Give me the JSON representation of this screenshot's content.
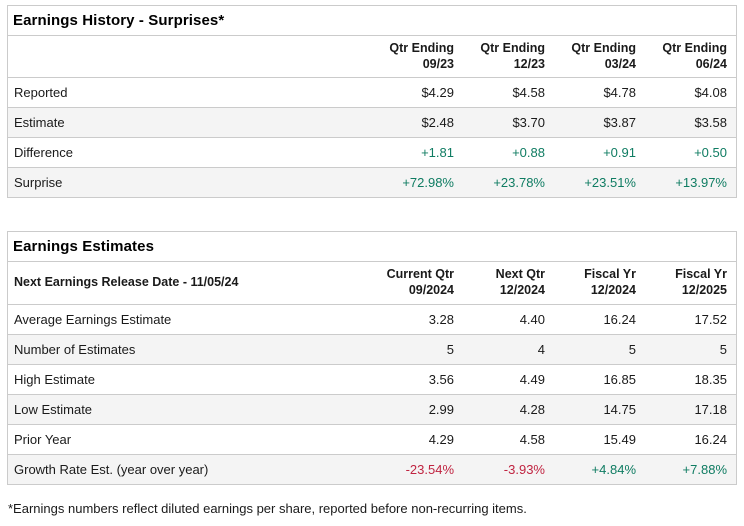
{
  "colors": {
    "green": "#0f7c62",
    "red": "#c02441",
    "default": "#1a1a1a",
    "border": "#cbcbcb",
    "alt_row_bg": "#f4f4f4"
  },
  "earnings_history": {
    "title": "Earnings History - Surprises*",
    "corner_label": "",
    "columns": [
      {
        "line1": "Qtr Ending",
        "line2": "09/23"
      },
      {
        "line1": "Qtr Ending",
        "line2": "12/23"
      },
      {
        "line1": "Qtr Ending",
        "line2": "03/24"
      },
      {
        "line1": "Qtr Ending",
        "line2": "06/24"
      }
    ],
    "rows": [
      {
        "label": "Reported",
        "values": [
          "$4.29",
          "$4.58",
          "$4.78",
          "$4.08"
        ],
        "value_colors": [
          "default",
          "default",
          "default",
          "default"
        ]
      },
      {
        "label": "Estimate",
        "values": [
          "$2.48",
          "$3.70",
          "$3.87",
          "$3.58"
        ],
        "value_colors": [
          "default",
          "default",
          "default",
          "default"
        ]
      },
      {
        "label": "Difference",
        "values": [
          "+1.81",
          "+0.88",
          "+0.91",
          "+0.50"
        ],
        "value_colors": [
          "green",
          "green",
          "green",
          "green"
        ]
      },
      {
        "label": "Surprise",
        "values": [
          "+72.98%",
          "+23.78%",
          "+23.51%",
          "+13.97%"
        ],
        "value_colors": [
          "green",
          "green",
          "green",
          "green"
        ]
      }
    ]
  },
  "earnings_estimates": {
    "title": "Earnings Estimates",
    "corner_label": "Next Earnings Release Date - 11/05/24",
    "columns": [
      {
        "line1": "Current Qtr",
        "line2": "09/2024"
      },
      {
        "line1": "Next Qtr",
        "line2": "12/2024"
      },
      {
        "line1": "Fiscal Yr",
        "line2": "12/2024"
      },
      {
        "line1": "Fiscal Yr",
        "line2": "12/2025"
      }
    ],
    "rows": [
      {
        "label": "Average Earnings Estimate",
        "values": [
          "3.28",
          "4.40",
          "16.24",
          "17.52"
        ],
        "value_colors": [
          "default",
          "default",
          "default",
          "default"
        ]
      },
      {
        "label": "Number of Estimates",
        "values": [
          "5",
          "4",
          "5",
          "5"
        ],
        "value_colors": [
          "default",
          "default",
          "default",
          "default"
        ]
      },
      {
        "label": "High Estimate",
        "values": [
          "3.56",
          "4.49",
          "16.85",
          "18.35"
        ],
        "value_colors": [
          "default",
          "default",
          "default",
          "default"
        ]
      },
      {
        "label": "Low Estimate",
        "values": [
          "2.99",
          "4.28",
          "14.75",
          "17.18"
        ],
        "value_colors": [
          "default",
          "default",
          "default",
          "default"
        ]
      },
      {
        "label": "Prior Year",
        "values": [
          "4.29",
          "4.58",
          "15.49",
          "16.24"
        ],
        "value_colors": [
          "default",
          "default",
          "default",
          "default"
        ]
      },
      {
        "label": "Growth Rate Est. (year over year)",
        "values": [
          "-23.54%",
          "-3.93%",
          "+4.84%",
          "+7.88%"
        ],
        "value_colors": [
          "red",
          "red",
          "green",
          "green"
        ]
      }
    ]
  },
  "footnote": "*Earnings numbers reflect diluted earnings per share, reported before non-recurring items."
}
